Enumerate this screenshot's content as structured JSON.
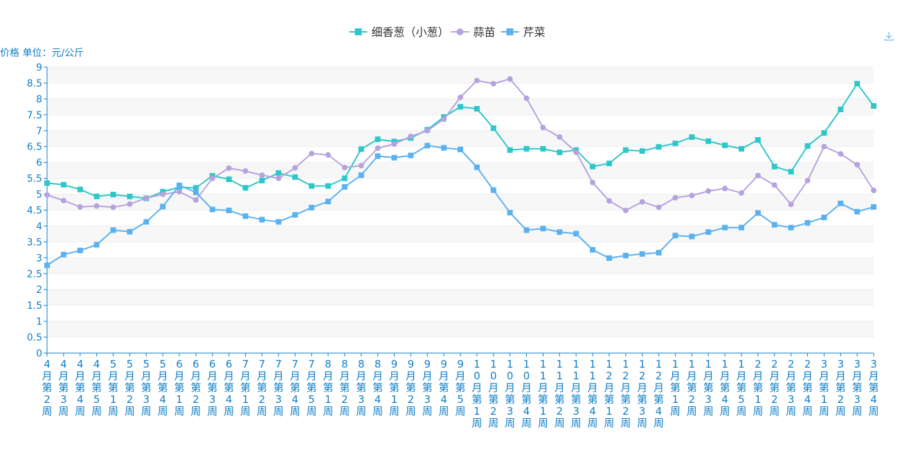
{
  "chart_data": {
    "type": "line",
    "ylabel": "价格 单位：元/公斤",
    "ylim": [
      0,
      9
    ],
    "ytick_step": 0.5,
    "grid": true,
    "legend_position": "top-center",
    "categories": [
      "4月第2周",
      "4月第3周",
      "4月第4周",
      "4月第5周",
      "5月第1周",
      "5月第2周",
      "5月第3周",
      "5月第4周",
      "6月第1周",
      "6月第2周",
      "6月第3周",
      "6月第4周",
      "7月第1周",
      "7月第2周",
      "7月第3周",
      "7月第4周",
      "7月第5周",
      "8月第1周",
      "8月第2周",
      "8月第3周",
      "8月第4周",
      "9月第1周",
      "9月第2周",
      "9月第3周",
      "9月第4周",
      "9月第5周",
      "10月第1周",
      "10月第2周",
      "10月第3周",
      "10月第4周",
      "11月第1周",
      "11月第2周",
      "11月第3周",
      "11月第4周",
      "12月第1周",
      "12月第2周",
      "12月第3周",
      "12月第4周",
      "1月第1周",
      "1月第2周",
      "1月第3周",
      "1月第4周",
      "1月第5周",
      "2月第1周",
      "2月第2周",
      "2月第3周",
      "2月第4周",
      "3月第1周",
      "3月第2周",
      "3月第3周",
      "3月第4周"
    ],
    "series": [
      {
        "name": "细香葱（小葱）",
        "color": "#2ec7c9",
        "marker": "square",
        "values": [
          5.35,
          5.3,
          5.15,
          4.93,
          4.99,
          4.93,
          4.87,
          5.08,
          5.22,
          5.2,
          5.58,
          5.47,
          5.2,
          5.43,
          5.67,
          5.54,
          5.26,
          5.26,
          5.5,
          6.42,
          6.73,
          6.66,
          6.77,
          7.03,
          7.43,
          7.75,
          7.69,
          7.08,
          6.39,
          6.43,
          6.43,
          6.32,
          6.39,
          5.87,
          5.97,
          6.39,
          6.36,
          6.49,
          6.6,
          6.8,
          6.67,
          6.54,
          6.43,
          6.71,
          5.87,
          5.71,
          6.52,
          6.93,
          7.67,
          8.48,
          7.78
        ]
      },
      {
        "name": "蒜苗",
        "color": "#b6a2de",
        "marker": "circle",
        "values": [
          4.98,
          4.8,
          4.6,
          4.63,
          4.59,
          4.69,
          4.88,
          5.0,
          5.08,
          4.82,
          5.5,
          5.82,
          5.73,
          5.6,
          5.5,
          5.83,
          6.28,
          6.24,
          5.84,
          5.9,
          6.45,
          6.58,
          6.82,
          7.0,
          7.36,
          8.05,
          8.58,
          8.48,
          8.63,
          8.02,
          7.1,
          6.8,
          6.32,
          5.37,
          4.79,
          4.49,
          4.76,
          4.59,
          4.89,
          4.96,
          5.1,
          5.18,
          5.04,
          5.59,
          5.29,
          4.68,
          5.43,
          6.5,
          6.27,
          5.93,
          5.12
        ]
      },
      {
        "name": "芹菜",
        "color": "#5ab1ef",
        "marker": "square",
        "values": [
          2.76,
          3.1,
          3.23,
          3.41,
          3.87,
          3.82,
          4.13,
          4.61,
          5.28,
          5.06,
          4.52,
          4.49,
          4.31,
          4.2,
          4.13,
          4.35,
          4.58,
          4.77,
          5.23,
          5.6,
          6.2,
          6.15,
          6.22,
          6.53,
          6.46,
          6.41,
          5.85,
          5.13,
          4.42,
          3.87,
          3.92,
          3.81,
          3.76,
          3.25,
          2.99,
          3.07,
          3.12,
          3.16,
          3.7,
          3.67,
          3.81,
          3.95,
          3.95,
          4.41,
          4.04,
          3.95,
          4.1,
          4.27,
          4.71,
          4.45,
          4.6
        ]
      }
    ]
  },
  "toolbar": {
    "download_icon": "download-icon"
  }
}
